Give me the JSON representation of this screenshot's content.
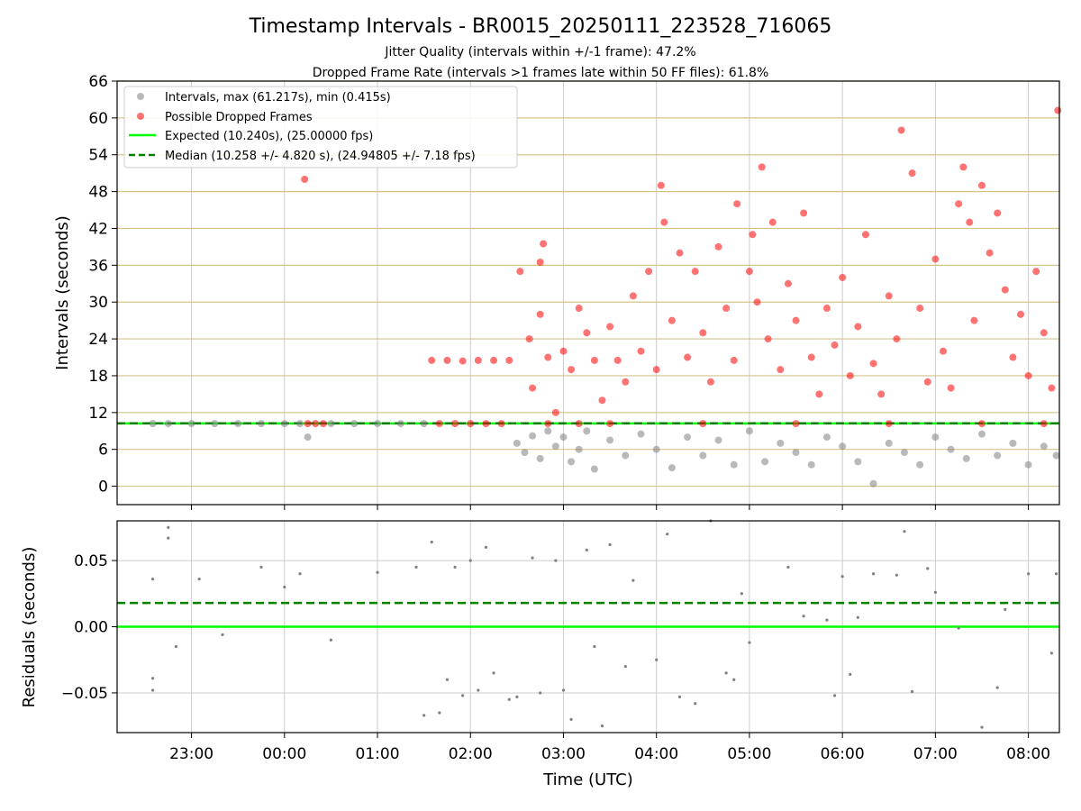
{
  "figure": {
    "title": "Timestamp Intervals - BR0015_20250111_223528_716065",
    "subtitle_1": "Jitter Quality (intervals within +/-1 frame): 47.2%",
    "subtitle_2": "Dropped Frame Rate (intervals >1 frames late within 50 FF files): 61.8%",
    "xlabel": "Time (UTC)"
  },
  "colors": {
    "intervals": "#808080",
    "dropped": "#ff0000",
    "expected": "#00ff00",
    "median": "#008000",
    "hgrid_top": "#d4c48a",
    "vgrid": "#cccccc"
  },
  "chart_data": [
    {
      "type": "scatter",
      "ylabel": "Intervals (seconds)",
      "ylim": [
        -3,
        66
      ],
      "yticks": [
        "0",
        "6",
        "12",
        "18",
        "24",
        "30",
        "36",
        "42",
        "48",
        "54",
        "60",
        "66"
      ],
      "xlim": [
        "22:12",
        "08:20"
      ],
      "xticks": [
        "23:00",
        "00:00",
        "01:00",
        "02:00",
        "03:00",
        "04:00",
        "05:00",
        "06:00",
        "07:00",
        "08:00"
      ],
      "grid": true,
      "legend_position": "upper-left",
      "legend": [
        {
          "label": "Intervals, max (61.217s), min (0.415s)",
          "marker": "gray-dot"
        },
        {
          "label": "Possible Dropped Frames",
          "marker": "red-dot"
        },
        {
          "label": "Expected (10.240s), (25.00000 fps)",
          "marker": "green-line"
        },
        {
          "label": "Median (10.258 +/- 4.820 s), (24.94805 +/- 7.18 fps)",
          "marker": "green-dashed-line"
        }
      ],
      "reference_lines": {
        "expected": 10.24,
        "median": 10.258
      },
      "series": [
        {
          "name": "Intervals, max (61.217s), min (0.415s)",
          "points": [
            [
              "22:35",
              10.2
            ],
            [
              "22:45",
              10.2
            ],
            [
              "23:00",
              10.2
            ],
            [
              "23:15",
              10.2
            ],
            [
              "23:30",
              10.2
            ],
            [
              "23:45",
              10.2
            ],
            [
              "00:00",
              10.2
            ],
            [
              "00:10",
              10.2
            ],
            [
              "00:15",
              8.0
            ],
            [
              "00:30",
              10.2
            ],
            [
              "00:45",
              10.2
            ],
            [
              "01:00",
              10.2
            ],
            [
              "01:15",
              10.2
            ],
            [
              "01:30",
              10.2
            ],
            [
              "02:30",
              7.0
            ],
            [
              "02:35",
              5.5
            ],
            [
              "02:40",
              8.2
            ],
            [
              "02:45",
              4.5
            ],
            [
              "02:50",
              9.0
            ],
            [
              "02:55",
              6.5
            ],
            [
              "03:00",
              8.0
            ],
            [
              "03:05",
              4.0
            ],
            [
              "03:10",
              6.0
            ],
            [
              "03:15",
              9.0
            ],
            [
              "03:20",
              2.8
            ],
            [
              "03:30",
              7.5
            ],
            [
              "03:40",
              5.0
            ],
            [
              "03:50",
              8.5
            ],
            [
              "04:00",
              6.0
            ],
            [
              "04:10",
              3.0
            ],
            [
              "04:20",
              8.0
            ],
            [
              "04:30",
              5.0
            ],
            [
              "04:40",
              7.5
            ],
            [
              "04:50",
              3.5
            ],
            [
              "05:00",
              9.0
            ],
            [
              "05:10",
              4.0
            ],
            [
              "05:20",
              7.0
            ],
            [
              "05:30",
              5.5
            ],
            [
              "05:40",
              3.5
            ],
            [
              "05:50",
              8.0
            ],
            [
              "06:00",
              6.5
            ],
            [
              "06:10",
              4.0
            ],
            [
              "06:20",
              0.415
            ],
            [
              "06:30",
              7.0
            ],
            [
              "06:40",
              5.5
            ],
            [
              "06:50",
              3.5
            ],
            [
              "07:00",
              8.0
            ],
            [
              "07:10",
              6.0
            ],
            [
              "07:20",
              4.5
            ],
            [
              "07:30",
              8.5
            ],
            [
              "07:40",
              5.0
            ],
            [
              "07:50",
              7.0
            ],
            [
              "08:00",
              3.5
            ],
            [
              "08:10",
              6.5
            ],
            [
              "08:18",
              5.0
            ]
          ]
        },
        {
          "name": "Possible Dropped Frames",
          "points": [
            [
              "00:13",
              50.0
            ],
            [
              "00:15",
              10.2
            ],
            [
              "00:20",
              10.2
            ],
            [
              "00:25",
              10.2
            ],
            [
              "01:35",
              20.5
            ],
            [
              "01:45",
              20.5
            ],
            [
              "01:55",
              20.4
            ],
            [
              "02:05",
              20.5
            ],
            [
              "02:15",
              20.5
            ],
            [
              "02:25",
              20.5
            ],
            [
              "01:40",
              10.2
            ],
            [
              "01:50",
              10.2
            ],
            [
              "02:00",
              10.2
            ],
            [
              "02:10",
              10.2
            ],
            [
              "02:20",
              10.2
            ],
            [
              "02:32",
              35.0
            ],
            [
              "02:38",
              24.0
            ],
            [
              "02:40",
              16.0
            ],
            [
              "02:45",
              28.0
            ],
            [
              "02:47",
              39.5
            ],
            [
              "02:45",
              36.5
            ],
            [
              "02:50",
              21.0
            ],
            [
              "02:55",
              12.0
            ],
            [
              "03:00",
              22.0
            ],
            [
              "03:05",
              19.0
            ],
            [
              "03:10",
              29.0
            ],
            [
              "03:15",
              25.0
            ],
            [
              "03:20",
              20.5
            ],
            [
              "03:25",
              14.0
            ],
            [
              "03:30",
              26.0
            ],
            [
              "03:35",
              20.5
            ],
            [
              "03:40",
              17.0
            ],
            [
              "03:45",
              31.0
            ],
            [
              "03:50",
              22.0
            ],
            [
              "03:55",
              35.0
            ],
            [
              "04:00",
              19.0
            ],
            [
              "04:03",
              49.0
            ],
            [
              "04:05",
              43.0
            ],
            [
              "04:10",
              27.0
            ],
            [
              "04:15",
              38.0
            ],
            [
              "04:20",
              21.0
            ],
            [
              "04:25",
              35.0
            ],
            [
              "04:30",
              25.0
            ],
            [
              "04:35",
              17.0
            ],
            [
              "04:40",
              39.0
            ],
            [
              "04:45",
              29.0
            ],
            [
              "04:50",
              20.5
            ],
            [
              "04:52",
              46.0
            ],
            [
              "05:00",
              35.0
            ],
            [
              "05:02",
              41.0
            ],
            [
              "05:05",
              30.0
            ],
            [
              "05:08",
              52.0
            ],
            [
              "05:12",
              24.0
            ],
            [
              "05:15",
              43.0
            ],
            [
              "05:20",
              19.0
            ],
            [
              "05:25",
              33.0
            ],
            [
              "05:30",
              27.0
            ],
            [
              "05:35",
              44.5
            ],
            [
              "05:40",
              21.0
            ],
            [
              "05:45",
              15.0
            ],
            [
              "05:50",
              29.0
            ],
            [
              "05:55",
              23.0
            ],
            [
              "06:00",
              34.0
            ],
            [
              "06:05",
              18.0
            ],
            [
              "06:10",
              26.0
            ],
            [
              "06:15",
              41.0
            ],
            [
              "06:20",
              20.0
            ],
            [
              "06:25",
              15.0
            ],
            [
              "06:30",
              31.0
            ],
            [
              "06:35",
              24.0
            ],
            [
              "06:38",
              58.0
            ],
            [
              "06:45",
              51.0
            ],
            [
              "06:50",
              29.0
            ],
            [
              "06:55",
              17.0
            ],
            [
              "07:00",
              37.0
            ],
            [
              "07:05",
              22.0
            ],
            [
              "07:10",
              16.0
            ],
            [
              "07:15",
              46.0
            ],
            [
              "07:18",
              52.0
            ],
            [
              "07:22",
              43.0
            ],
            [
              "07:25",
              27.0
            ],
            [
              "07:30",
              49.0
            ],
            [
              "07:35",
              38.0
            ],
            [
              "07:40",
              44.5
            ],
            [
              "07:45",
              32.0
            ],
            [
              "07:50",
              21.0
            ],
            [
              "07:55",
              28.0
            ],
            [
              "08:00",
              18.0
            ],
            [
              "08:05",
              35.0
            ],
            [
              "08:10",
              25.0
            ],
            [
              "08:15",
              16.0
            ],
            [
              "08:19",
              61.217
            ],
            [
              "02:50",
              10.2
            ],
            [
              "03:10",
              10.2
            ],
            [
              "03:30",
              10.2
            ],
            [
              "04:30",
              10.2
            ],
            [
              "05:30",
              10.2
            ],
            [
              "06:30",
              10.2
            ],
            [
              "07:30",
              10.2
            ],
            [
              "08:10",
              10.2
            ]
          ]
        }
      ]
    },
    {
      "type": "scatter",
      "ylabel": "Residuals (seconds)",
      "ylim": [
        -0.08,
        0.08
      ],
      "yticks": [
        "−0.05",
        "0.00",
        "0.05"
      ],
      "xlim": [
        "22:12",
        "08:20"
      ],
      "xticks": [
        "23:00",
        "00:00",
        "01:00",
        "02:00",
        "03:00",
        "04:00",
        "05:00",
        "06:00",
        "07:00",
        "08:00"
      ],
      "grid": true,
      "reference_lines": {
        "expected": 0.0,
        "median": 0.018
      },
      "series": [
        {
          "name": "Residuals",
          "points": [
            [
              "22:35",
              0.036
            ],
            [
              "22:35",
              -0.039
            ],
            [
              "22:35",
              -0.048
            ],
            [
              "22:45",
              0.075
            ],
            [
              "22:45",
              0.067
            ],
            [
              "22:50",
              -0.015
            ],
            [
              "23:05",
              0.036
            ],
            [
              "23:20",
              -0.006
            ],
            [
              "23:45",
              0.045
            ],
            [
              "00:00",
              0.03
            ],
            [
              "00:10",
              0.04
            ],
            [
              "00:30",
              -0.01
            ],
            [
              "01:00",
              0.041
            ],
            [
              "01:25",
              0.045
            ],
            [
              "01:30",
              -0.067
            ],
            [
              "01:35",
              0.064
            ],
            [
              "01:40",
              -0.065
            ],
            [
              "01:45",
              -0.04
            ],
            [
              "01:50",
              0.045
            ],
            [
              "01:55",
              -0.052
            ],
            [
              "02:00",
              0.05
            ],
            [
              "02:05",
              -0.048
            ],
            [
              "02:10",
              0.06
            ],
            [
              "02:15",
              -0.035
            ],
            [
              "02:25",
              -0.055
            ],
            [
              "02:30",
              -0.053
            ],
            [
              "02:40",
              0.052
            ],
            [
              "02:45",
              -0.05
            ],
            [
              "02:55",
              0.05
            ],
            [
              "03:00",
              -0.048
            ],
            [
              "03:05",
              -0.07
            ],
            [
              "03:15",
              0.058
            ],
            [
              "03:20",
              -0.015
            ],
            [
              "03:25",
              -0.075
            ],
            [
              "03:30",
              0.062
            ],
            [
              "03:40",
              -0.03
            ],
            [
              "03:45",
              0.035
            ],
            [
              "04:00",
              -0.025
            ],
            [
              "04:07",
              0.07
            ],
            [
              "04:15",
              -0.053
            ],
            [
              "04:25",
              -0.058
            ],
            [
              "04:35",
              0.08
            ],
            [
              "04:45",
              -0.035
            ],
            [
              "04:50",
              -0.04
            ],
            [
              "04:55",
              0.025
            ],
            [
              "05:00",
              -0.012
            ],
            [
              "05:25",
              0.045
            ],
            [
              "05:35",
              0.008
            ],
            [
              "05:50",
              0.005
            ],
            [
              "05:55",
              -0.052
            ],
            [
              "06:00",
              0.038
            ],
            [
              "06:05",
              -0.036
            ],
            [
              "06:10",
              0.007
            ],
            [
              "06:20",
              0.04
            ],
            [
              "06:35",
              0.039
            ],
            [
              "06:40",
              0.072
            ],
            [
              "06:45",
              -0.049
            ],
            [
              "06:55",
              0.044
            ],
            [
              "07:00",
              0.026
            ],
            [
              "07:15",
              -0.001
            ],
            [
              "07:30",
              -0.076
            ],
            [
              "07:40",
              -0.046
            ],
            [
              "07:45",
              0.013
            ],
            [
              "08:00",
              0.04
            ],
            [
              "08:15",
              -0.02
            ],
            [
              "08:18",
              0.04
            ]
          ]
        }
      ]
    }
  ]
}
